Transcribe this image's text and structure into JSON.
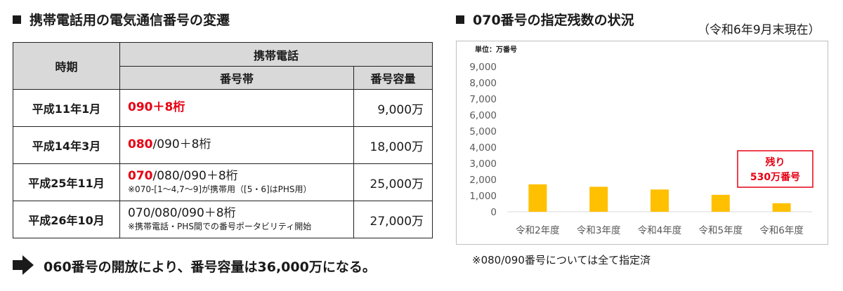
{
  "left": {
    "heading": "携帯電話用の電気通信番号の変遷",
    "table": {
      "header_period": "時期",
      "header_group": "携帯電話",
      "header_band": "番号帯",
      "header_capacity": "番号容量",
      "rows": [
        {
          "period": "平成11年1月",
          "band_red": "090＋8桁",
          "band_rest": "",
          "note": "",
          "capacity": "9,000万"
        },
        {
          "period": "平成14年3月",
          "band_red": "080",
          "band_rest": "/090＋8桁",
          "note": "",
          "capacity": "18,000万"
        },
        {
          "period": "平成25年11月",
          "band_red": "070",
          "band_rest": "/080/090＋8桁",
          "note": "※070-[1～4,7～9]が携帯用（[5・6]はPHS用）",
          "capacity": "25,000万"
        },
        {
          "period": "平成26年10月",
          "band_red": "",
          "band_rest": "070/080/090＋8桁",
          "note": "※携帯電話・PHS間での番号ポータビリティ開始",
          "capacity": "27,000万"
        }
      ]
    },
    "statement": "060番号の開放により、番号容量は36,000万になる。"
  },
  "right": {
    "heading": "070番号の指定残数の状況",
    "date_note": "（令和6年9月末現在）",
    "footnote": "※080/090番号については全て指定済"
  },
  "chart_data": {
    "type": "bar",
    "unit_label": "単位：万番号",
    "categories": [
      "令和2年度",
      "令和3年度",
      "令和4年度",
      "令和5年度",
      "令和6年度"
    ],
    "values": [
      1700,
      1550,
      1380,
      1050,
      530
    ],
    "yticks": [
      "0",
      "1,000",
      "2,000",
      "3,000",
      "4,000",
      "5,000",
      "6,000",
      "7,000",
      "8,000",
      "9,000"
    ],
    "ylim": [
      0,
      9000
    ],
    "grid": false,
    "bar_color": "#ffc000",
    "annotation": {
      "line1": "残り",
      "line2": "530万番号",
      "color": "#e60012"
    }
  }
}
